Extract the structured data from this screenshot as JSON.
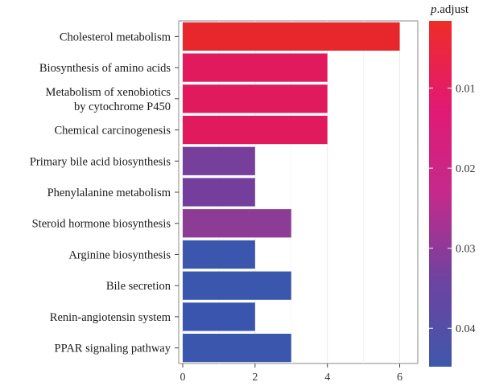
{
  "chart_data": {
    "type": "bar",
    "orientation": "horizontal",
    "categories": [
      [
        "Cholesterol metabolism"
      ],
      [
        "Biosynthesis of amino acids"
      ],
      [
        "Metabolism of xenobiotics",
        "by cytochrome P450"
      ],
      [
        "Chemical carcinogenesis"
      ],
      [
        "Primary bile acid biosynthesis"
      ],
      [
        "Phenylalanine metabolism"
      ],
      [
        "Steroid hormone biosynthesis"
      ],
      [
        "Arginine biosynthesis"
      ],
      [
        "Bile secretion"
      ],
      [
        "Renin-angiotensin system"
      ],
      [
        "PPAR signaling pathway"
      ]
    ],
    "values": [
      6,
      4,
      4,
      4,
      2,
      2,
      3,
      2,
      3,
      2,
      3
    ],
    "colors": [
      "#e8272c",
      "#e11a5e",
      "#e11a5e",
      "#e11a5e",
      "#763f9c",
      "#743f9c",
      "#8d3c96",
      "#3a56ad",
      "#3a56ad",
      "#3a55ad",
      "#3a56ad"
    ],
    "xlim": [
      0,
      6.5
    ],
    "xticks": [
      "0",
      "2",
      "4",
      "6"
    ],
    "xtick_values": [
      0,
      2,
      4,
      6
    ],
    "grid": true,
    "legend": {
      "title_italic": "p",
      "title_rest": ".adjust",
      "placement": "right",
      "ticks": [
        "0.01",
        "0.02",
        "0.03",
        "0.04"
      ],
      "tick_values": [
        0.01,
        0.02,
        0.03,
        0.04
      ],
      "range": [
        0.0016,
        0.0448
      ],
      "gradient": [
        "#ee2d26",
        "#e21973",
        "#c42a8c",
        "#6e43a0",
        "#3f57ab"
      ]
    }
  }
}
